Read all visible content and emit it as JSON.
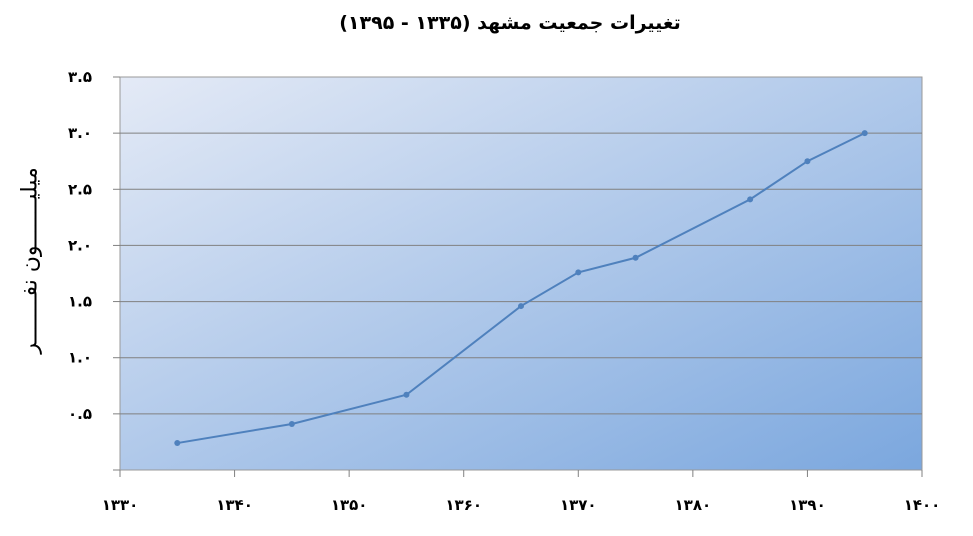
{
  "chart_data": {
    "type": "line",
    "title": "تغییرات جمعیت مشهد (۱۳۳۵ - ۱۳۹۵)",
    "xlabel": "",
    "ylabel": "میلیـــــــون نفـــــــر",
    "xlim": [
      1330,
      1400
    ],
    "ylim": [
      0,
      3.5
    ],
    "xticks": [
      1330,
      1340,
      1350,
      1360,
      1370,
      1380,
      1390,
      1400
    ],
    "xtick_labels": [
      "۱۳۳۰",
      "۱۳۴۰",
      "۱۳۵۰",
      "۱۳۶۰",
      "۱۳۷۰",
      "۱۳۸۰",
      "۱۳۹۰",
      "۱۴۰۰"
    ],
    "yticks": [
      0.5,
      1.0,
      1.5,
      2.0,
      2.5,
      3.0,
      3.5
    ],
    "ytick_labels": [
      "۰.۵",
      "۱.۰",
      "۱.۵",
      "۲.۰",
      "۲.۵",
      "۳.۰",
      "۳.۵"
    ],
    "grid": true,
    "series": [
      {
        "x": [
          1335,
          1345,
          1355,
          1365,
          1370,
          1375,
          1385,
          1390,
          1395
        ],
        "y": [
          0.24,
          0.41,
          0.67,
          1.46,
          1.76,
          1.89,
          2.41,
          2.75,
          3.0
        ],
        "color": "#4F81BD"
      }
    ],
    "background_gradient": [
      "#E4EAF6",
      "#7BA7DE"
    ]
  }
}
